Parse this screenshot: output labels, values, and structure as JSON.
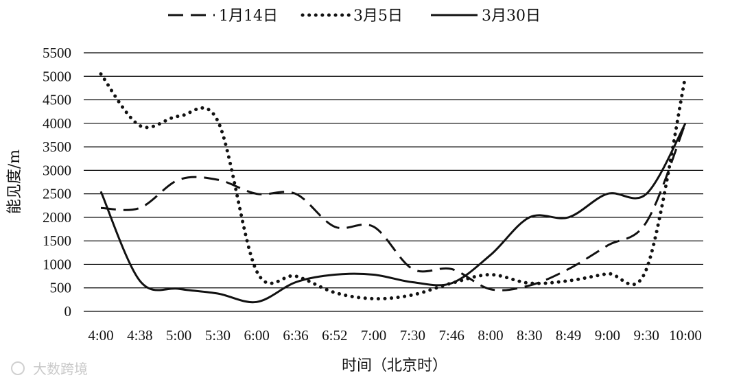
{
  "chart_data": {
    "type": "line",
    "title": "",
    "xlabel": "时间（北京时）",
    "ylabel": "能见度/m",
    "categories": [
      "4:00",
      "4:38",
      "5:00",
      "5:30",
      "6:00",
      "6:36",
      "6:52",
      "7:00",
      "7:30",
      "7:46",
      "8:00",
      "8:30",
      "8:49",
      "9:00",
      "9:30",
      "10:00"
    ],
    "ylim": [
      0,
      5500
    ],
    "yticks": [
      0,
      500,
      1000,
      1500,
      2000,
      2500,
      3000,
      3500,
      4000,
      4500,
      5000,
      5500
    ],
    "grid": "horizontal",
    "legend_position": "top",
    "series": [
      {
        "name": "1月14日",
        "style": "dashed",
        "color": "#111111",
        "values": [
          2200,
          2200,
          2800,
          2800,
          2500,
          2500,
          1800,
          1800,
          900,
          900,
          470,
          550,
          900,
          1400,
          1900,
          4000
        ]
      },
      {
        "name": "3月5日",
        "style": "dotted",
        "color": "#111111",
        "values": [
          5050,
          3950,
          4150,
          4050,
          850,
          750,
          400,
          270,
          350,
          600,
          780,
          600,
          650,
          800,
          900,
          5000
        ]
      },
      {
        "name": "3月30日",
        "style": "solid",
        "color": "#111111",
        "values": [
          2550,
          650,
          480,
          380,
          200,
          620,
          780,
          780,
          620,
          600,
          1200,
          2000,
          2000,
          2500,
          2500,
          4000
        ]
      }
    ]
  },
  "watermark": "大数跨境"
}
